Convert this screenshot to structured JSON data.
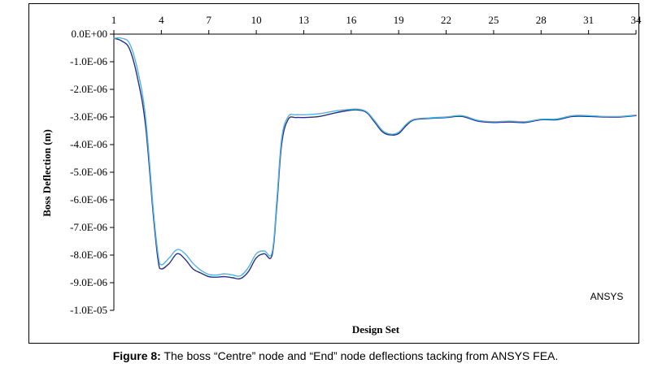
{
  "caption": {
    "label": "Figure 8:",
    "text": " The boss “Centre” node and “End” node deflections tacking from ANSYS FEA."
  },
  "annotation": "ANSYS",
  "chart_data": {
    "type": "line",
    "title": "",
    "xlabel": "Design Set",
    "ylabel": "Boss Deflection (m)",
    "x_ticks": [
      "1",
      "4",
      "7",
      "10",
      "13",
      "16",
      "19",
      "22",
      "25",
      "28",
      "31",
      "34"
    ],
    "xlim": [
      1,
      34
    ],
    "ylim": [
      -1e-05,
      0
    ],
    "y_ticks": [
      0,
      -1e-06,
      -2e-06,
      -3e-06,
      -4e-06,
      -5e-06,
      -6e-06,
      -7e-06,
      -8e-06,
      -9e-06,
      -1e-05
    ],
    "y_tick_labels": [
      "0.0E+00",
      "-1.0E-06",
      "-2.0E-06",
      "-3.0E-06",
      "-4.0E-06",
      "-5.0E-06",
      "-6.0E-06",
      "-7.0E-06",
      "-8.0E-06",
      "-9.0E-06",
      "-1.0E-05"
    ],
    "grid": false,
    "x_axis_position": "top",
    "series": [
      {
        "color": "#2b2f7a",
        "points": [
          [
            1,
            -1.5e-07
          ],
          [
            1.5,
            -2.5e-07
          ],
          [
            2,
            -5.5e-07
          ],
          [
            2.5,
            -1.6e-06
          ],
          [
            3,
            -3.3e-06
          ],
          [
            3.5,
            -6.6e-06
          ],
          [
            3.8,
            -8.2e-06
          ],
          [
            4,
            -8.5e-06
          ],
          [
            4.5,
            -8.3e-06
          ],
          [
            5,
            -7.95e-06
          ],
          [
            5.5,
            -8.15e-06
          ],
          [
            6,
            -8.5e-06
          ],
          [
            6.5,
            -8.65e-06
          ],
          [
            7,
            -8.78e-06
          ],
          [
            7.5,
            -8.8e-06
          ],
          [
            8,
            -8.78e-06
          ],
          [
            8.5,
            -8.82e-06
          ],
          [
            9,
            -8.85e-06
          ],
          [
            9.5,
            -8.6e-06
          ],
          [
            10,
            -8.1e-06
          ],
          [
            10.5,
            -7.95e-06
          ],
          [
            11,
            -8e-06
          ],
          [
            11.3,
            -6.2e-06
          ],
          [
            11.6,
            -4e-06
          ],
          [
            12,
            -3.1e-06
          ],
          [
            12.5,
            -3.02e-06
          ],
          [
            13,
            -3.02e-06
          ],
          [
            14,
            -2.98e-06
          ],
          [
            15,
            -2.85e-06
          ],
          [
            16,
            -2.75e-06
          ],
          [
            16.5,
            -2.75e-06
          ],
          [
            17,
            -2.85e-06
          ],
          [
            17.5,
            -3.2e-06
          ],
          [
            18,
            -3.55e-06
          ],
          [
            18.5,
            -3.65e-06
          ],
          [
            19,
            -3.6e-06
          ],
          [
            19.5,
            -3.3e-06
          ],
          [
            20,
            -3.1e-06
          ],
          [
            21,
            -3.05e-06
          ],
          [
            22,
            -3.02e-06
          ],
          [
            23,
            -2.98e-06
          ],
          [
            24,
            -3.15e-06
          ],
          [
            25,
            -3.2e-06
          ],
          [
            26,
            -3.18e-06
          ],
          [
            27,
            -3.2e-06
          ],
          [
            28,
            -3.1e-06
          ],
          [
            29,
            -3.1e-06
          ],
          [
            30,
            -2.98e-06
          ],
          [
            31,
            -2.98e-06
          ],
          [
            32,
            -3e-06
          ],
          [
            33,
            -3e-06
          ],
          [
            34,
            -2.95e-06
          ]
        ]
      },
      {
        "color": "#4fb3e8",
        "points": [
          [
            1,
            -1.5e-07
          ],
          [
            1.5,
            -1.5e-07
          ],
          [
            2,
            -3.5e-07
          ],
          [
            2.5,
            -1.3e-06
          ],
          [
            3,
            -3e-06
          ],
          [
            3.5,
            -6.4e-06
          ],
          [
            3.8,
            -8e-06
          ],
          [
            4,
            -8.35e-06
          ],
          [
            4.5,
            -8.1e-06
          ],
          [
            5,
            -7.8e-06
          ],
          [
            5.5,
            -7.95e-06
          ],
          [
            6,
            -8.3e-06
          ],
          [
            6.5,
            -8.55e-06
          ],
          [
            7,
            -8.7e-06
          ],
          [
            7.5,
            -8.72e-06
          ],
          [
            8,
            -8.68e-06
          ],
          [
            8.5,
            -8.72e-06
          ],
          [
            9,
            -8.75e-06
          ],
          [
            9.5,
            -8.45e-06
          ],
          [
            10,
            -7.95e-06
          ],
          [
            10.5,
            -7.85e-06
          ],
          [
            11,
            -7.9e-06
          ],
          [
            11.3,
            -6e-06
          ],
          [
            11.6,
            -3.8e-06
          ],
          [
            12,
            -3e-06
          ],
          [
            12.5,
            -2.92e-06
          ],
          [
            13,
            -2.92e-06
          ],
          [
            14,
            -2.88e-06
          ],
          [
            15,
            -2.78e-06
          ],
          [
            16,
            -2.72e-06
          ],
          [
            16.5,
            -2.72e-06
          ],
          [
            17,
            -2.82e-06
          ],
          [
            17.5,
            -3.15e-06
          ],
          [
            18,
            -3.5e-06
          ],
          [
            18.5,
            -3.62e-06
          ],
          [
            19,
            -3.55e-06
          ],
          [
            19.5,
            -3.25e-06
          ],
          [
            20,
            -3.08e-06
          ],
          [
            21,
            -3.03e-06
          ],
          [
            22,
            -3e-06
          ],
          [
            23,
            -2.95e-06
          ],
          [
            24,
            -3.12e-06
          ],
          [
            25,
            -3.17e-06
          ],
          [
            26,
            -3.15e-06
          ],
          [
            27,
            -3.17e-06
          ],
          [
            28,
            -3.08e-06
          ],
          [
            29,
            -3.07e-06
          ],
          [
            30,
            -2.95e-06
          ],
          [
            31,
            -2.95e-06
          ],
          [
            32,
            -2.98e-06
          ],
          [
            33,
            -2.98e-06
          ],
          [
            34,
            -2.93e-06
          ]
        ]
      }
    ]
  }
}
